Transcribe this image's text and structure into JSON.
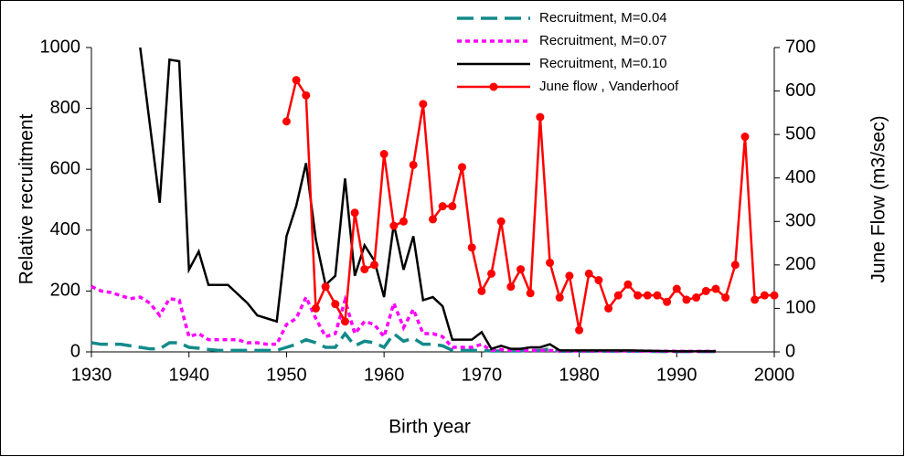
{
  "chart_data": {
    "type": "line",
    "xlabel": "Birth year",
    "ylabel": "Relative recruitment",
    "y2label": "June Flow (m3/sec)",
    "xlim": [
      1930,
      2000
    ],
    "xticks": [
      1930,
      1940,
      1950,
      1960,
      1970,
      1980,
      1990,
      2000
    ],
    "ylim": [
      0,
      1000
    ],
    "yticks": [
      0,
      200,
      400,
      600,
      800,
      1000
    ],
    "y2lim": [
      0,
      700
    ],
    "y2ticks": [
      0,
      100,
      200,
      300,
      400,
      500,
      600,
      700
    ],
    "legend": "top",
    "series": [
      {
        "name": "Recruitment, M=0.04",
        "color": "#138a8a",
        "dash": "dashed",
        "markers": false,
        "x": [
          1930,
          1931,
          1932,
          1933,
          1934,
          1935,
          1936,
          1937,
          1938,
          1939,
          1940,
          1941,
          1942,
          1943,
          1944,
          1945,
          1946,
          1947,
          1948,
          1949,
          1950,
          1951,
          1952,
          1953,
          1954,
          1955,
          1956,
          1957,
          1958,
          1959,
          1960,
          1961,
          1962,
          1963,
          1964,
          1965,
          1966,
          1967,
          1968,
          1969,
          1970,
          1971,
          1972,
          1973,
          1974,
          1975,
          1976,
          1977,
          1978,
          1980,
          1985,
          1990,
          1994
        ],
        "values": [
          30,
          25,
          25,
          25,
          20,
          15,
          10,
          10,
          30,
          30,
          15,
          12,
          8,
          5,
          5,
          5,
          5,
          5,
          5,
          5,
          15,
          25,
          40,
          30,
          15,
          15,
          60,
          20,
          35,
          30,
          15,
          60,
          35,
          45,
          25,
          25,
          20,
          5,
          5,
          5,
          5,
          3,
          3,
          3,
          3,
          5,
          5,
          10,
          2,
          2,
          2,
          1,
          1
        ]
      },
      {
        "name": "Recruitment, M=0.07",
        "color": "#ff00ff",
        "dash": "dotted",
        "markers": false,
        "x": [
          1930,
          1931,
          1932,
          1933,
          1934,
          1935,
          1936,
          1937,
          1938,
          1939,
          1940,
          1941,
          1942,
          1943,
          1944,
          1945,
          1946,
          1947,
          1948,
          1949,
          1950,
          1951,
          1952,
          1953,
          1954,
          1955,
          1956,
          1957,
          1958,
          1959,
          1960,
          1961,
          1962,
          1963,
          1964,
          1965,
          1966,
          1967,
          1968,
          1969,
          1970,
          1971,
          1972,
          1973,
          1974,
          1975,
          1976,
          1977,
          1978,
          1980,
          1985,
          1990,
          1994
        ],
        "values": [
          215,
          200,
          195,
          185,
          175,
          180,
          160,
          120,
          175,
          170,
          50,
          60,
          40,
          40,
          40,
          40,
          30,
          30,
          25,
          25,
          90,
          110,
          180,
          110,
          50,
          60,
          170,
          60,
          100,
          90,
          50,
          160,
          80,
          140,
          60,
          60,
          50,
          15,
          15,
          15,
          25,
          5,
          8,
          5,
          5,
          5,
          5,
          5,
          3,
          3,
          3,
          2,
          2
        ]
      },
      {
        "name": "Recruitment, M=0.10",
        "color": "#000000",
        "dash": "solid",
        "markers": false,
        "x": [
          1935,
          1937,
          1938,
          1939,
          1940,
          1941,
          1942,
          1943,
          1944,
          1945,
          1946,
          1947,
          1948,
          1949,
          1950,
          1951,
          1952,
          1953,
          1954,
          1955,
          1956,
          1957,
          1958,
          1959,
          1960,
          1961,
          1962,
          1963,
          1964,
          1965,
          1966,
          1967,
          1968,
          1969,
          1970,
          1971,
          1972,
          1973,
          1974,
          1975,
          1976,
          1977,
          1978,
          1980,
          1985,
          1990,
          1994
        ],
        "values": [
          1000,
          490,
          960,
          955,
          270,
          330,
          220,
          220,
          220,
          190,
          160,
          120,
          110,
          100,
          380,
          480,
          620,
          370,
          220,
          250,
          570,
          250,
          350,
          300,
          180,
          420,
          270,
          380,
          170,
          180,
          150,
          40,
          40,
          40,
          65,
          10,
          20,
          10,
          10,
          15,
          15,
          25,
          5,
          5,
          5,
          2,
          2
        ]
      },
      {
        "name": "June flow , Vanderhoof",
        "color": "#ff0000",
        "dash": "solid",
        "markers": true,
        "axis": "y2",
        "x": [
          1950,
          1951,
          1952,
          1953,
          1954,
          1955,
          1956,
          1957,
          1958,
          1959,
          1960,
          1961,
          1962,
          1963,
          1964,
          1965,
          1966,
          1967,
          1968,
          1969,
          1970,
          1971,
          1972,
          1973,
          1974,
          1975,
          1976,
          1977,
          1978,
          1979,
          1980,
          1981,
          1982,
          1983,
          1984,
          1985,
          1986,
          1987,
          1988,
          1989,
          1990,
          1991,
          1992,
          1993,
          1994,
          1995,
          1996,
          1997,
          1998,
          1999,
          2000
        ],
        "values": [
          530,
          625,
          590,
          100,
          150,
          110,
          70,
          320,
          190,
          200,
          455,
          290,
          300,
          430,
          570,
          305,
          335,
          335,
          425,
          240,
          140,
          180,
          300,
          150,
          190,
          135,
          540,
          205,
          125,
          175,
          50,
          180,
          165,
          100,
          130,
          155,
          130,
          130,
          130,
          115,
          145,
          120,
          125,
          140,
          145,
          125,
          200,
          495,
          120,
          130,
          130
        ]
      }
    ]
  }
}
